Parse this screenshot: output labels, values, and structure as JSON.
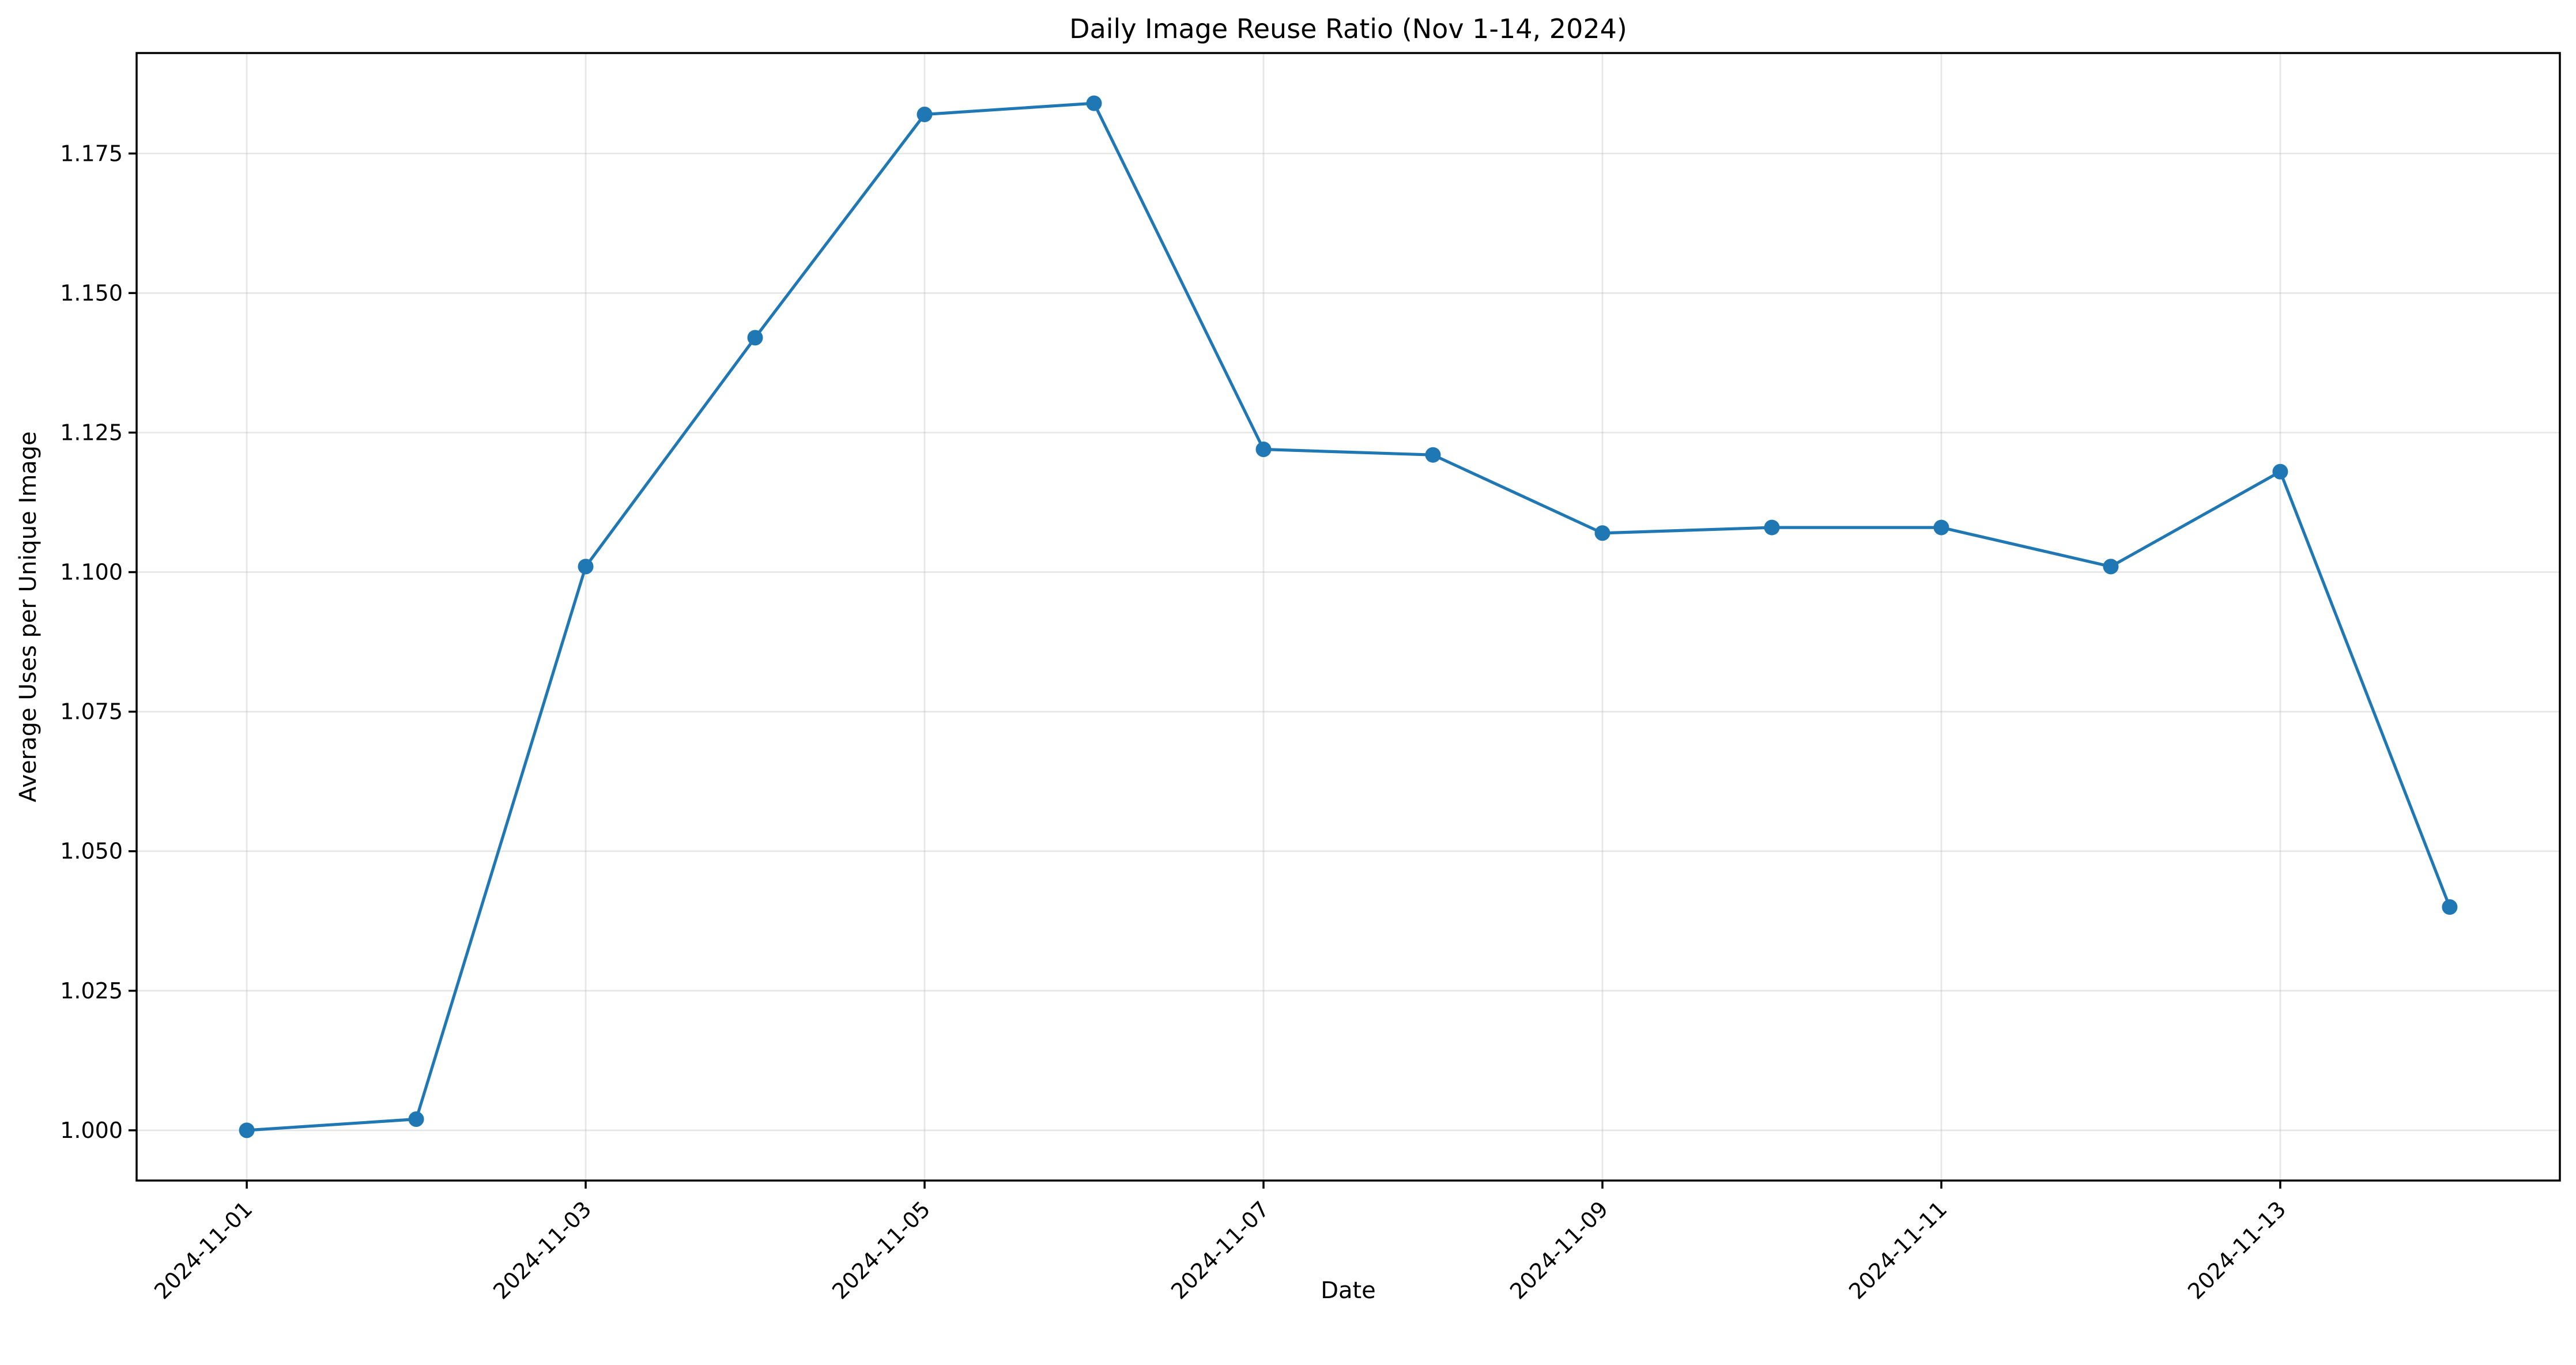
{
  "chart_data": {
    "type": "line",
    "title": "Daily Image Reuse Ratio (Nov 1-14, 2024)",
    "xlabel": "Date",
    "ylabel": "Average Uses per Unique Image",
    "x": [
      "2024-11-01",
      "2024-11-02",
      "2024-11-03",
      "2024-11-04",
      "2024-11-05",
      "2024-11-06",
      "2024-11-07",
      "2024-11-08",
      "2024-11-09",
      "2024-11-10",
      "2024-11-11",
      "2024-11-12",
      "2024-11-13",
      "2024-11-14"
    ],
    "series": [
      {
        "values": [
          1.0,
          1.002,
          1.101,
          1.142,
          1.182,
          1.184,
          1.122,
          1.121,
          1.107,
          1.108,
          1.108,
          1.101,
          1.118,
          1.04
        ],
        "color": "#1f77b4",
        "marker": "circle"
      }
    ],
    "xticks": [
      "2024-11-01",
      "2024-11-03",
      "2024-11-05",
      "2024-11-07",
      "2024-11-09",
      "2024-11-11",
      "2024-11-13"
    ],
    "yticks": [
      "1.000",
      "1.025",
      "1.050",
      "1.075",
      "1.100",
      "1.125",
      "1.150",
      "1.175"
    ],
    "ylim": [
      0.991,
      1.193
    ],
    "grid": true
  }
}
